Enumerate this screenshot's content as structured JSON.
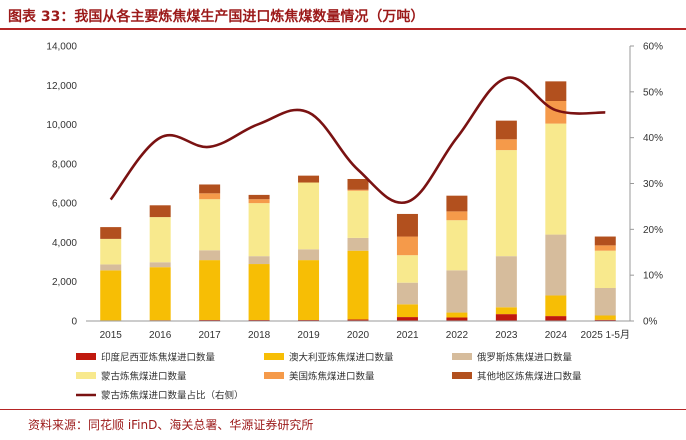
{
  "title": "图表 33：我国从各主要炼焦煤生产国进口炼焦煤数量情况（万吨）",
  "source": "资料来源：同花顺 iFinD、海关总署、华源证券研究所",
  "chart_data": {
    "type": "bar",
    "stacked": true,
    "categories": [
      "2015",
      "2016",
      "2017",
      "2018",
      "2019",
      "2020",
      "2021",
      "2022",
      "2023",
      "2024",
      "2025 1-5月"
    ],
    "left_axis": {
      "min": 0,
      "max": 14000,
      "step": 2000,
      "tick_labels": [
        "0",
        "2,000",
        "4,000",
        "6,000",
        "8,000",
        "10,000",
        "12,000",
        "14,000"
      ]
    },
    "right_axis": {
      "min": 0,
      "max": 60,
      "step": 10,
      "tick_labels": [
        "0%",
        "10%",
        "20%",
        "30%",
        "40%",
        "50%",
        "60%"
      ]
    },
    "series": [
      {
        "name": "印度尼西亚炼焦煤进口数量",
        "color": "#c0190e",
        "values": [
          30,
          40,
          50,
          50,
          50,
          80,
          200,
          180,
          350,
          250,
          60
        ]
      },
      {
        "name": "澳大利亚炼焦煤进口数量",
        "color": "#f7be05",
        "values": [
          2550,
          2700,
          3050,
          2850,
          3050,
          3500,
          650,
          250,
          350,
          1050,
          220
        ]
      },
      {
        "name": "俄罗斯炼焦煤进口数量",
        "color": "#d6bc9c",
        "values": [
          300,
          250,
          500,
          400,
          550,
          650,
          1100,
          2150,
          2600,
          3100,
          1400
        ]
      },
      {
        "name": "蒙古炼焦煤进口数量",
        "color": "#f8e98d",
        "values": [
          1300,
          2300,
          2600,
          2700,
          3400,
          2400,
          1400,
          2550,
          5400,
          5650,
          1900
        ]
      },
      {
        "name": "美国炼焦煤进口数量",
        "color": "#f59a4a",
        "values": [
          0,
          0,
          300,
          200,
          0,
          50,
          950,
          450,
          550,
          1150,
          270
        ]
      },
      {
        "name": "其他地区炼焦煤进口数量",
        "color": "#b2501e",
        "values": [
          600,
          600,
          450,
          220,
          350,
          550,
          1150,
          800,
          950,
          1000,
          450
        ]
      }
    ],
    "line": {
      "name": "蒙古炼焦煤进口数量占比（右侧）",
      "color": "#7a1212",
      "axis": "right",
      "values": [
        26.5,
        40,
        38,
        43,
        45.5,
        33,
        26,
        40,
        53,
        46,
        45.5
      ]
    }
  }
}
